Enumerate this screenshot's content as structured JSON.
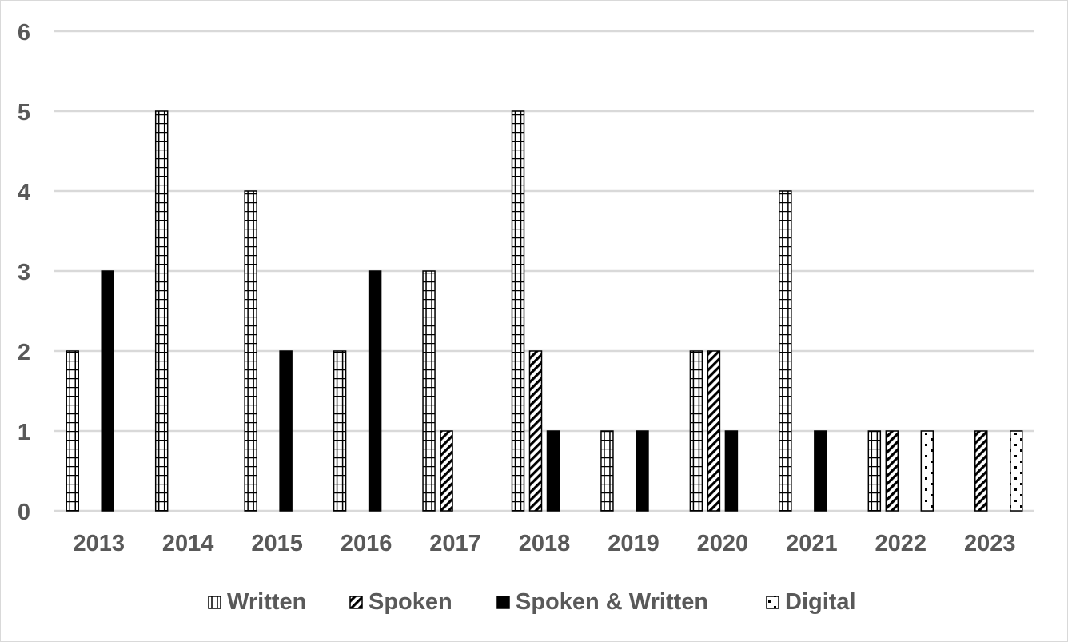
{
  "chart_data": {
    "type": "bar",
    "title": "",
    "xlabel": "",
    "ylabel": "",
    "ylim": [
      0,
      6
    ],
    "yticks": [
      0,
      1,
      2,
      3,
      4,
      5,
      6
    ],
    "grid": true,
    "legend_position": "bottom",
    "categories": [
      "2013",
      "2014",
      "2015",
      "2016",
      "2017",
      "2018",
      "2019",
      "2020",
      "2021",
      "2022",
      "2023"
    ],
    "series": [
      {
        "name": "Written",
        "pattern": "vertical-grid",
        "values": [
          2,
          5,
          4,
          2,
          3,
          5,
          1,
          2,
          4,
          1,
          0
        ]
      },
      {
        "name": "Spoken",
        "pattern": "diagonal-stripes",
        "values": [
          0,
          0,
          0,
          0,
          1,
          2,
          0,
          2,
          0,
          1,
          1
        ]
      },
      {
        "name": "Spoken & Written",
        "pattern": "solid-black",
        "values": [
          3,
          0,
          2,
          3,
          0,
          1,
          1,
          1,
          1,
          0,
          0
        ]
      },
      {
        "name": "Digital",
        "pattern": "dots",
        "values": [
          0,
          0,
          0,
          0,
          0,
          0,
          0,
          0,
          0,
          1,
          1
        ]
      }
    ],
    "colors": {
      "text": "#595959",
      "grid": "#d9d9d9",
      "bar_outline": "#000000",
      "bar_fill": "#ffffff"
    }
  }
}
